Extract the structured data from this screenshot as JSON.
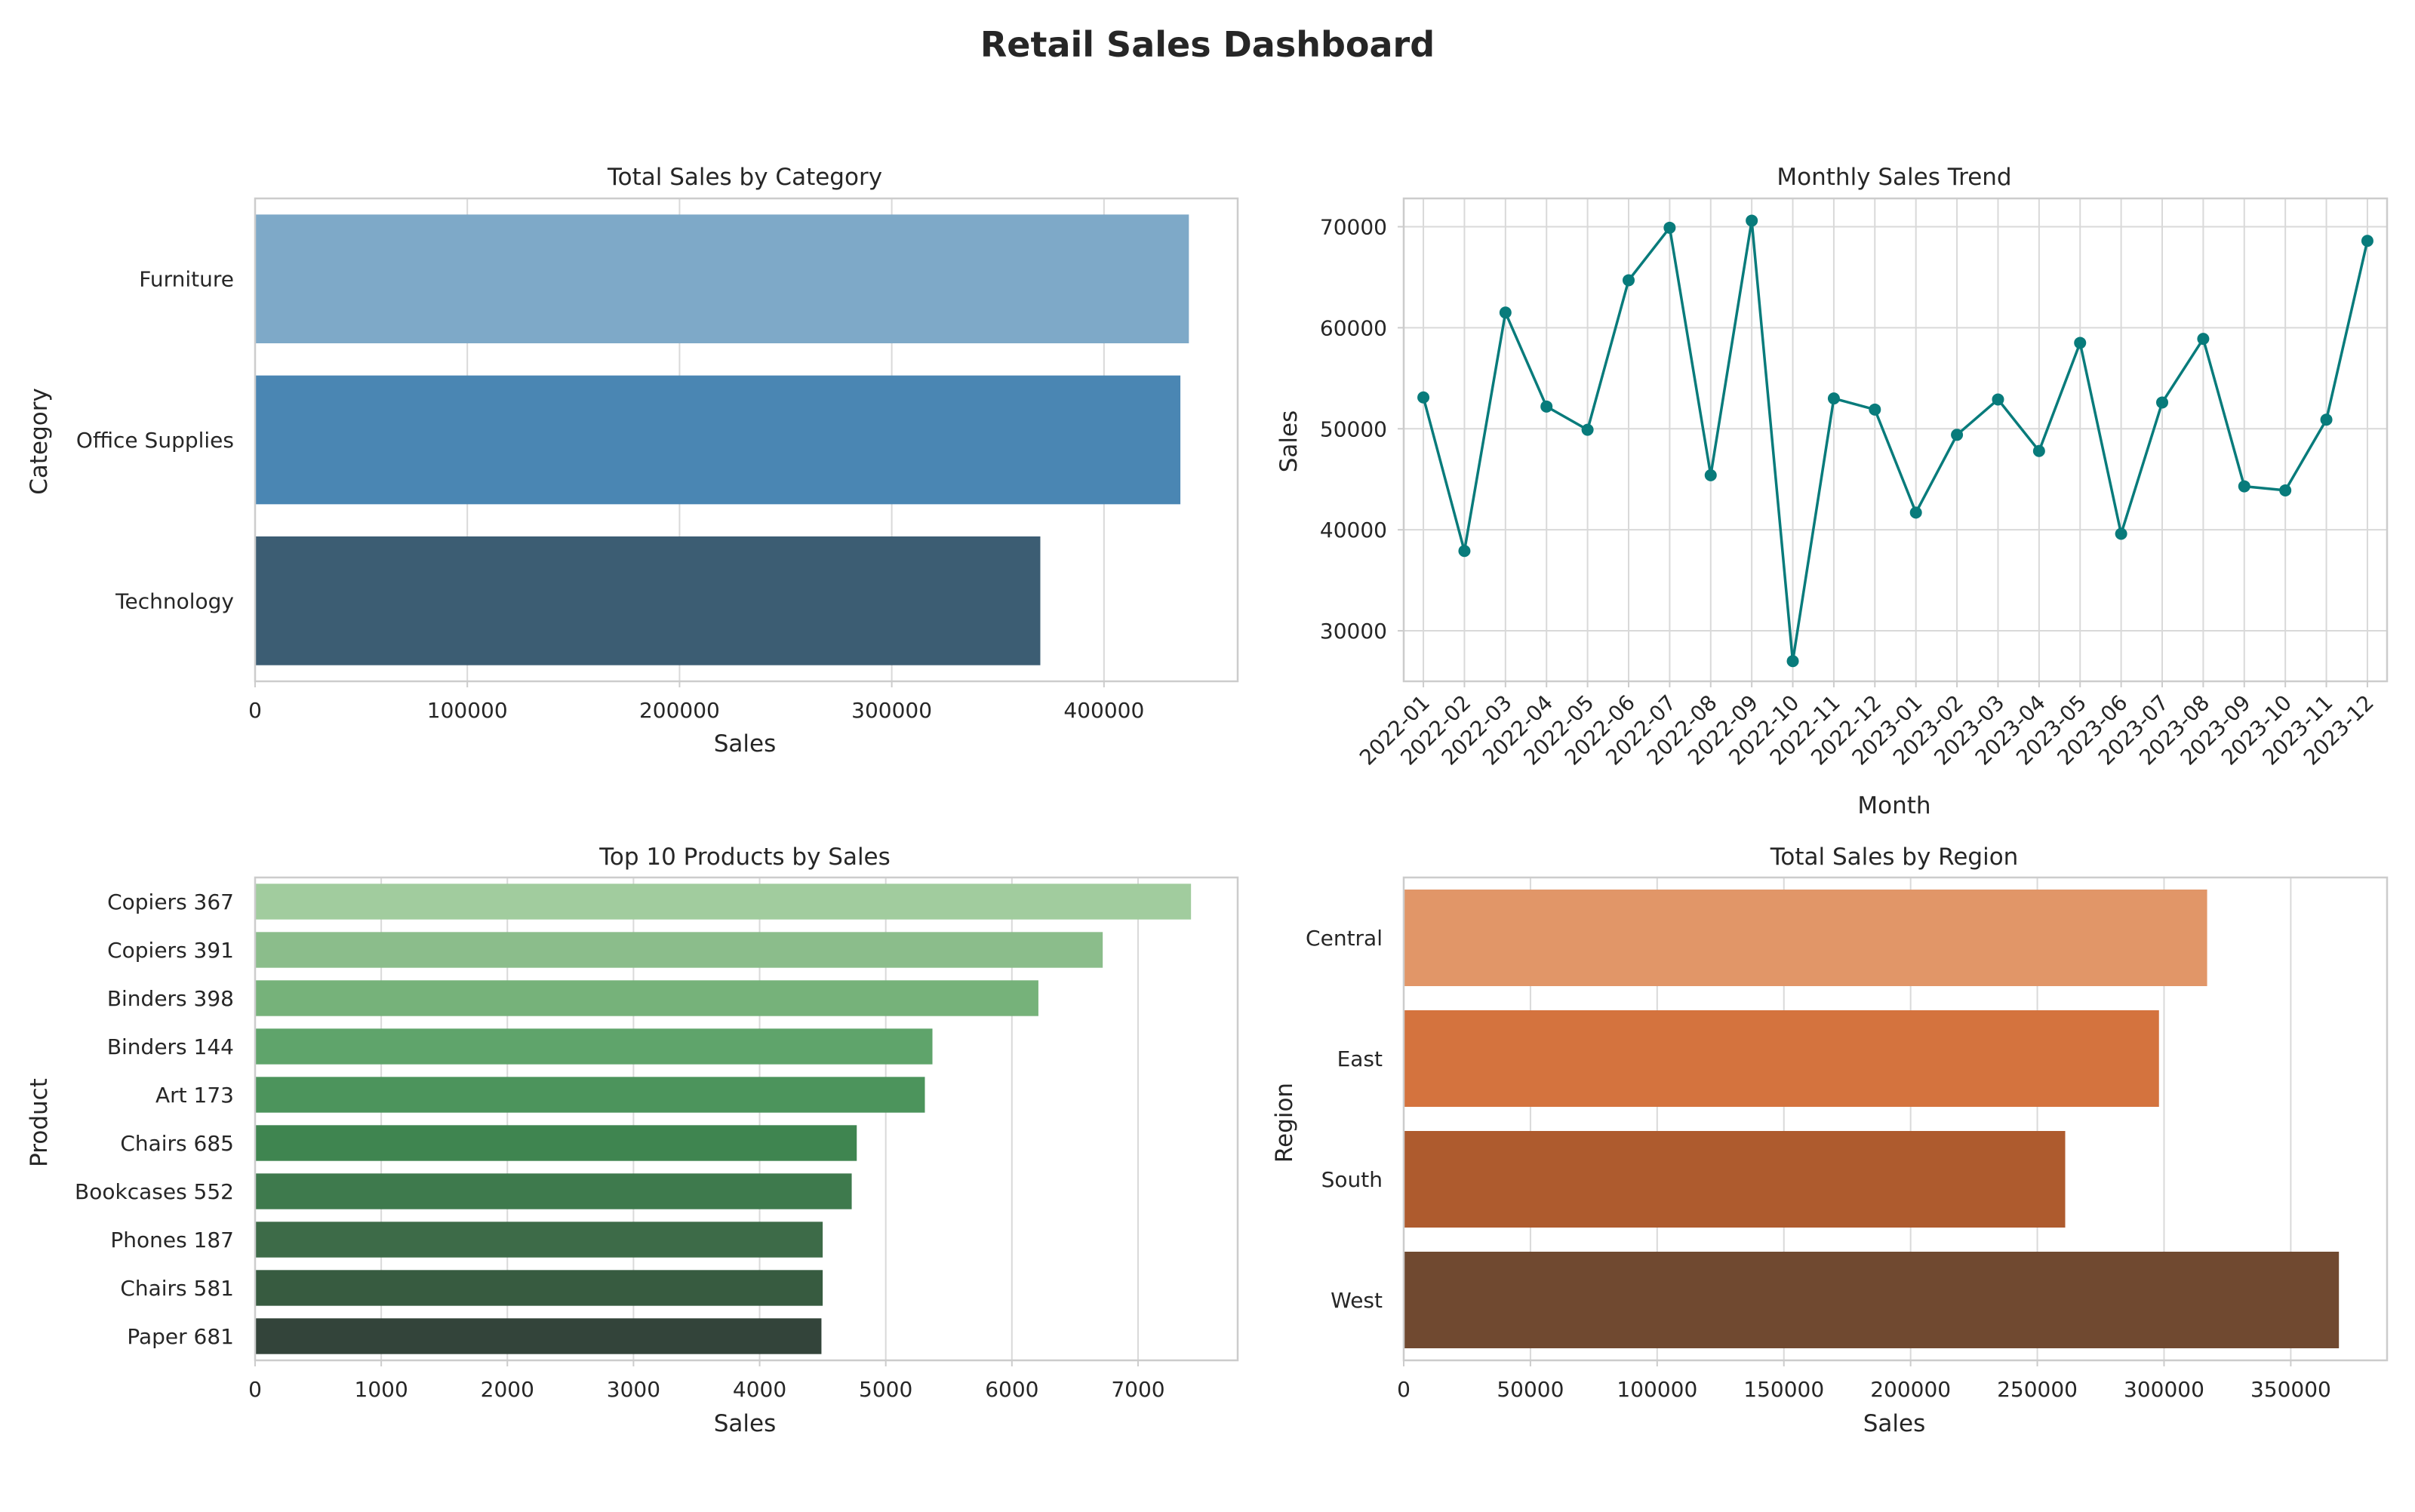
{
  "dashboard": {
    "title": "Retail Sales Dashboard"
  },
  "chart_data": [
    {
      "type": "bar",
      "orientation": "horizontal",
      "title": "Total Sales by Category",
      "xlabel": "Sales",
      "ylabel": "Category",
      "categories": [
        "Furniture",
        "Office Supplies",
        "Technology"
      ],
      "values": [
        440000,
        436000,
        370000
      ],
      "colors": [
        "#7ea9c8",
        "#4a86b3",
        "#3c5d73"
      ],
      "xlim": [
        0,
        463000
      ],
      "xticks": [
        0,
        100000,
        200000,
        300000,
        400000
      ],
      "grid": true
    },
    {
      "type": "line",
      "title": "Monthly Sales Trend",
      "xlabel": "Month",
      "ylabel": "Sales",
      "x": [
        "2022-01",
        "2022-02",
        "2022-03",
        "2022-04",
        "2022-05",
        "2022-06",
        "2022-07",
        "2022-08",
        "2022-09",
        "2022-10",
        "2022-11",
        "2022-12",
        "2023-01",
        "2023-02",
        "2023-03",
        "2023-04",
        "2023-05",
        "2023-06",
        "2023-07",
        "2023-08",
        "2023-09",
        "2023-10",
        "2023-11",
        "2023-12"
      ],
      "values": [
        53100,
        37900,
        61500,
        52200,
        49900,
        64700,
        69900,
        45400,
        70600,
        27000,
        53000,
        51900,
        41700,
        49400,
        52900,
        47800,
        58500,
        39600,
        52600,
        58900,
        44300,
        43900,
        50900,
        68600
      ],
      "color": "#087b7b",
      "ylim": [
        25000,
        72800
      ],
      "yticks": [
        30000,
        40000,
        50000,
        60000,
        70000
      ],
      "grid": true
    },
    {
      "type": "bar",
      "orientation": "horizontal",
      "title": "Top 10 Products by Sales",
      "xlabel": "Sales",
      "ylabel": "Product",
      "categories": [
        "Copiers 367",
        "Copiers 391",
        "Binders 398",
        "Binders 144",
        "Art 173",
        "Chairs 685",
        "Bookcases 552",
        "Phones 187",
        "Chairs 581",
        "Paper 681"
      ],
      "values": [
        7420,
        6720,
        6210,
        5370,
        5310,
        4770,
        4730,
        4500,
        4500,
        4490
      ],
      "colors": [
        "#a1cc9e",
        "#8bbd8b",
        "#76b27a",
        "#5fa46b",
        "#4c945c",
        "#3f8550",
        "#3e7a4d",
        "#3d6b48",
        "#375b40",
        "#33443a"
      ],
      "xlim": [
        0,
        7790
      ],
      "xticks": [
        0,
        1000,
        2000,
        3000,
        4000,
        5000,
        6000,
        7000
      ],
      "grid": true
    },
    {
      "type": "bar",
      "orientation": "horizontal",
      "title": "Total Sales by Region",
      "xlabel": "Sales",
      "ylabel": "Region",
      "categories": [
        "Central",
        "East",
        "South",
        "West"
      ],
      "values": [
        317000,
        298000,
        261000,
        369000
      ],
      "colors": [
        "#e19668",
        "#d4733e",
        "#ae5b2e",
        "#704930"
      ],
      "xlim": [
        0,
        388000
      ],
      "xticks": [
        0,
        50000,
        100000,
        150000,
        200000,
        250000,
        300000,
        350000
      ],
      "grid": true
    }
  ]
}
